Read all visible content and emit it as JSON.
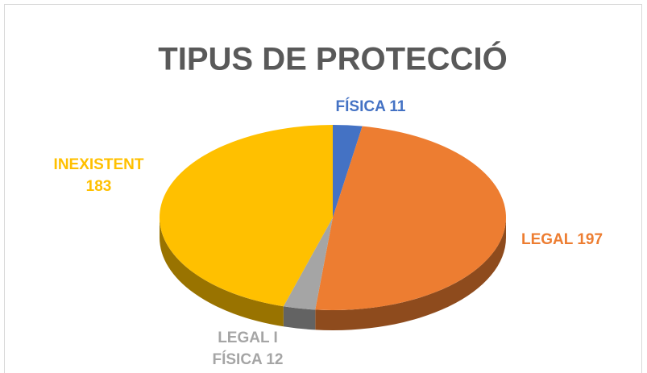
{
  "chart_data": {
    "type": "pie",
    "title": "TIPUS DE PROTECCIÓ",
    "categories": [
      "FÍSICA",
      "LEGAL",
      "LEGAL I FÍSICA",
      "INEXISTENT"
    ],
    "values": [
      11,
      197,
      12,
      183
    ],
    "colors": [
      "#4472c4",
      "#ed7d31",
      "#a5a5a5",
      "#ffc000"
    ]
  }
}
